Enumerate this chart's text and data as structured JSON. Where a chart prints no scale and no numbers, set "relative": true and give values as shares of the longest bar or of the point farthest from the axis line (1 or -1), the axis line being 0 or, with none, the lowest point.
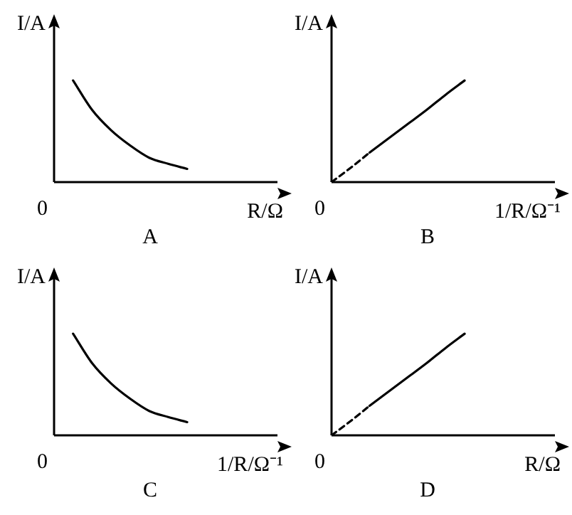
{
  "chart_data": [
    {
      "type": "line",
      "title": "A",
      "xlabel": "R/Ω",
      "ylabel": "I/A",
      "annotations": [
        "0"
      ],
      "relative": true,
      "marker": "none",
      "categories": [
        null,
        null,
        null,
        null,
        null,
        null,
        null,
        null,
        null,
        null,
        null,
        null
      ],
      "series": [
        {
          "color": "#000000",
          "line_style": "solid",
          "values": [
            null,
            1.0,
            0.71,
            0.51,
            0.36,
            0.24,
            0.18,
            0.13,
            null,
            null,
            null,
            null
          ]
        }
      ]
    },
    {
      "type": "line",
      "title": "B",
      "xlabel": "1/R/Ω⁻¹",
      "ylabel": "I/A",
      "annotations": [
        "0"
      ],
      "relative": true,
      "marker": "none",
      "categories": [
        null,
        null,
        null,
        null,
        null,
        null,
        null,
        null,
        null,
        null,
        null,
        null
      ],
      "series": [
        {
          "color": "#000000",
          "line_style": "dashed",
          "values": [
            0,
            0.14,
            0.29,
            null,
            null,
            null,
            null,
            null,
            null,
            null,
            null,
            null
          ]
        },
        {
          "color": "#000000",
          "line_style": "solid",
          "values": [
            null,
            null,
            0.29,
            0.43,
            0.57,
            0.71,
            0.86,
            1.0,
            null,
            null,
            null,
            null
          ]
        }
      ]
    },
    {
      "type": "line",
      "title": "C",
      "xlabel": "1/R/Ω⁻¹",
      "ylabel": "I/A",
      "annotations": [
        "0"
      ],
      "relative": true,
      "marker": "none",
      "categories": [
        null,
        null,
        null,
        null,
        null,
        null,
        null,
        null,
        null,
        null,
        null,
        null
      ],
      "series": [
        {
          "color": "#000000",
          "line_style": "solid",
          "values": [
            null,
            1.0,
            0.71,
            0.51,
            0.36,
            0.24,
            0.18,
            0.13,
            null,
            null,
            null,
            null
          ]
        }
      ]
    },
    {
      "type": "line",
      "title": "D",
      "xlabel": "R/Ω",
      "ylabel": "I/A",
      "annotations": [
        "0"
      ],
      "relative": true,
      "marker": "none",
      "categories": [
        null,
        null,
        null,
        null,
        null,
        null,
        null,
        null,
        null,
        null,
        null,
        null
      ],
      "series": [
        {
          "color": "#000000",
          "line_style": "dashed",
          "values": [
            0,
            0.14,
            0.29,
            null,
            null,
            null,
            null,
            null,
            null,
            null,
            null,
            null
          ]
        },
        {
          "color": "#000000",
          "line_style": "solid",
          "values": [
            null,
            null,
            0.29,
            0.43,
            0.57,
            0.71,
            0.86,
            1.0,
            null,
            null,
            null,
            null
          ]
        }
      ]
    }
  ]
}
